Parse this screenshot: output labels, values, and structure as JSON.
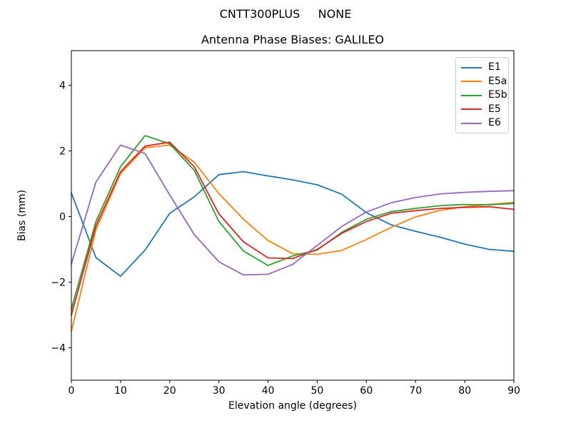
{
  "window": {
    "suptitle": "CNTT300PLUS     NONE"
  },
  "chart_data": {
    "type": "line",
    "title": "Antenna Phase Biases: GALILEO",
    "xlabel": "Elevation angle (degrees)",
    "ylabel": "Bias (mm)",
    "xlim": [
      0,
      90
    ],
    "ylim": [
      -4.99,
      5.06
    ],
    "xticks": [
      0,
      10,
      20,
      30,
      40,
      50,
      60,
      70,
      80,
      90
    ],
    "yticks": [
      -4,
      -2,
      0,
      2,
      4
    ],
    "grid": false,
    "legend_position": "upper right",
    "x": [
      0,
      5,
      10,
      15,
      20,
      25,
      30,
      35,
      40,
      45,
      50,
      55,
      60,
      65,
      70,
      75,
      80,
      85,
      90
    ],
    "series": [
      {
        "name": "E1",
        "color": "#1f77b4",
        "values": [
          0.72,
          -1.25,
          -1.82,
          -1.02,
          0.1,
          0.6,
          1.28,
          1.37,
          1.24,
          1.12,
          0.97,
          0.68,
          0.12,
          -0.25,
          -0.45,
          -0.63,
          -0.84,
          -1.0,
          -1.06
        ]
      },
      {
        "name": "E5a",
        "color": "#ff7f0e",
        "values": [
          -3.5,
          -0.4,
          1.31,
          2.1,
          2.18,
          1.66,
          0.7,
          -0.08,
          -0.73,
          -1.13,
          -1.15,
          -1.03,
          -0.7,
          -0.33,
          -0.01,
          0.19,
          0.3,
          0.37,
          0.43
        ]
      },
      {
        "name": "E5b",
        "color": "#2ca02c",
        "values": [
          -2.82,
          -0.15,
          1.52,
          2.47,
          2.22,
          1.41,
          -0.15,
          -1.05,
          -1.49,
          -1.2,
          -1.02,
          -0.48,
          -0.08,
          0.15,
          0.25,
          0.33,
          0.37,
          0.36,
          0.4
        ]
      },
      {
        "name": "E5",
        "color": "#d62728",
        "values": [
          -3.0,
          -0.28,
          1.37,
          2.15,
          2.27,
          1.52,
          0.08,
          -0.77,
          -1.26,
          -1.28,
          -1.0,
          -0.51,
          -0.15,
          0.1,
          0.18,
          0.25,
          0.28,
          0.3,
          0.22
        ]
      },
      {
        "name": "E6",
        "color": "#9467bd",
        "values": [
          -1.45,
          1.05,
          2.18,
          1.92,
          0.66,
          -0.55,
          -1.38,
          -1.78,
          -1.76,
          -1.46,
          -0.88,
          -0.3,
          0.14,
          0.42,
          0.58,
          0.69,
          0.74,
          0.77,
          0.79
        ]
      }
    ]
  }
}
